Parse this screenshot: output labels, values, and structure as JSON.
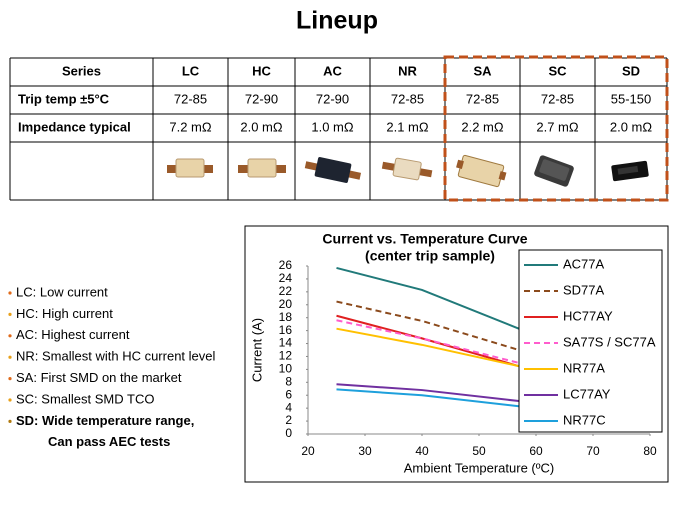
{
  "header": {
    "title": "Lineup"
  },
  "table": {
    "header": [
      "Series",
      "LC",
      "HC",
      "AC",
      "NR",
      "SA",
      "SC",
      "SD"
    ],
    "rows": [
      [
        "Trip temp ±5°C",
        "72-85",
        "72-90",
        "72-90",
        "72-85",
        "72-85",
        "72-85",
        "55-150"
      ],
      [
        "Impedance typical",
        "7.2 mΩ",
        "2.0 mΩ",
        "1.0 mΩ",
        "2.1 mΩ",
        "2.2 mΩ",
        "2.7 mΩ",
        "2.0 mΩ"
      ]
    ]
  },
  "bullets": [
    {
      "lines": [
        "LC:  Low current"
      ],
      "bold": false
    },
    {
      "lines": [
        "HC: High current"
      ],
      "bold": false
    },
    {
      "lines": [
        "AC: Highest current"
      ],
      "bold": false
    },
    {
      "lines": [
        "NR:  Smallest with HC current level"
      ],
      "bold": false
    },
    {
      "lines": [
        "SA: First SMD on the market"
      ],
      "bold": false
    },
    {
      "lines": [
        "SC: Smallest SMD TCO"
      ],
      "bold": false
    },
    {
      "lines": [
        "SD: Wide temperature range,",
        "Can pass AEC tests"
      ],
      "bold": true
    }
  ],
  "chart_data": {
    "type": "line",
    "title": "Current vs. Temperature Curve",
    "subtitle": "(center trip sample)",
    "x_label": "Ambient Temperature (ºC)",
    "y_label": "Current (A)",
    "x": [
      25,
      40,
      57
    ],
    "series": [
      {
        "name": "AC77A",
        "color": "#217a7a",
        "dashed": false,
        "values": [
          25.7,
          22.3,
          16.3
        ]
      },
      {
        "name": "SD77A",
        "color": "#8b4a1c",
        "dashed": true,
        "values": [
          20.5,
          17.5,
          13
        ]
      },
      {
        "name": "HC77AY",
        "color": "#e02020",
        "dashed": false,
        "values": [
          18.3,
          14.8,
          10.5
        ]
      },
      {
        "name": "SA77S / SC77A",
        "color": "#ff5ccd",
        "dashed": true,
        "values": [
          17.6,
          14.8,
          11
        ]
      },
      {
        "name": "NR77A",
        "color": "#ffc000",
        "dashed": false,
        "values": [
          16.3,
          13.8,
          10.5
        ]
      },
      {
        "name": "LC77AY",
        "color": "#7030a0",
        "dashed": false,
        "values": [
          7.7,
          6.8,
          5.1
        ]
      },
      {
        "name": "NR77C",
        "color": "#1ea0dc",
        "dashed": false,
        "values": [
          6.9,
          6.0,
          4.3
        ]
      }
    ],
    "xlim": [
      20,
      80
    ],
    "xticks": [
      20,
      30,
      40,
      50,
      60,
      70,
      80
    ],
    "ylim": [
      0,
      26
    ],
    "yticks": [
      0,
      2,
      4,
      6,
      8,
      10,
      12,
      14,
      16,
      18,
      20,
      22,
      24,
      26
    ],
    "grid": false,
    "legend": "upper right"
  }
}
